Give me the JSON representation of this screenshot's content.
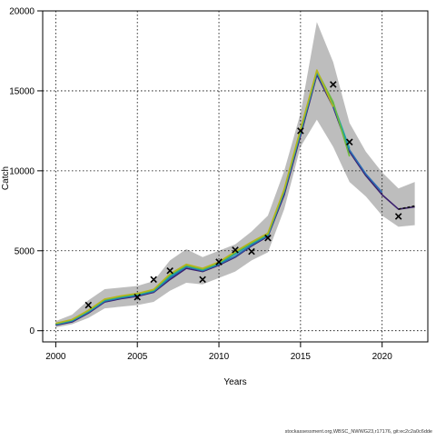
{
  "chart_data": {
    "type": "line",
    "xlabel": "Years",
    "ylabel": "Catch",
    "xlim": [
      1999.2,
      2022.8
    ],
    "ylim": [
      -700,
      20000
    ],
    "xticks": [
      2000,
      2005,
      2010,
      2015,
      2020
    ],
    "yticks": [
      0,
      5000,
      10000,
      15000,
      20000
    ],
    "grid": true,
    "band": {
      "x": [
        2000,
        2001,
        2002,
        2003,
        2004,
        2005,
        2006,
        2007,
        2008,
        2009,
        2010,
        2011,
        2012,
        2013,
        2014,
        2015,
        2016,
        2017,
        2018,
        2019,
        2020,
        2021,
        2022
      ],
      "upper": [
        600,
        1000,
        1900,
        2600,
        2700,
        2800,
        3100,
        4400,
        5100,
        4600,
        5000,
        5400,
        6200,
        7200,
        10000,
        13600,
        19300,
        16800,
        13000,
        11200,
        9900,
        8900,
        9300
      ],
      "lower": [
        200,
        400,
        800,
        1400,
        1500,
        1600,
        1800,
        2500,
        3000,
        2900,
        3300,
        3700,
        4400,
        4900,
        7600,
        11500,
        13200,
        11500,
        9300,
        8400,
        7200,
        6500,
        6600
      ],
      "color": "#bdbdbd"
    },
    "series": [
      {
        "color": "#3b1f6e",
        "x": [
          2000,
          2001,
          2002,
          2003,
          2004,
          2005,
          2006,
          2007,
          2008,
          2009,
          2010,
          2011,
          2012,
          2013,
          2014,
          2015,
          2016,
          2017,
          2018,
          2019,
          2020,
          2021,
          2022
        ],
        "y": [
          350,
          550,
          1100,
          1800,
          2000,
          2150,
          2400,
          3200,
          3900,
          3700,
          4100,
          4600,
          5300,
          5900,
          8500,
          12200,
          16000,
          14000,
          11200,
          9700,
          8500,
          7600,
          7750
        ]
      },
      {
        "color": "#2a6bb3",
        "x": [
          2000,
          2001,
          2002,
          2003,
          2004,
          2005,
          2006,
          2007,
          2008,
          2009,
          2010,
          2011,
          2012,
          2013,
          2014,
          2015,
          2016,
          2017,
          2018,
          2019,
          2020
        ],
        "y": [
          380,
          600,
          1150,
          1850,
          2050,
          2200,
          2450,
          3300,
          4000,
          3750,
          4150,
          4650,
          5350,
          5950,
          8650,
          12350,
          16100,
          14100,
          11300,
          9800,
          8650
        ]
      },
      {
        "color": "#1aa3a3",
        "x": [
          2000,
          2001,
          2002,
          2003,
          2004,
          2005,
          2006,
          2007,
          2008,
          2009,
          2010,
          2011,
          2012,
          2013,
          2014,
          2015,
          2016,
          2017,
          2018
        ],
        "y": [
          410,
          640,
          1200,
          1900,
          2100,
          2250,
          2500,
          3400,
          4050,
          3800,
          4200,
          4800,
          5450,
          6000,
          8750,
          12450,
          16200,
          14200,
          11400
        ]
      },
      {
        "color": "#6cba3a",
        "x": [
          2000,
          2001,
          2002,
          2003,
          2004,
          2005,
          2006,
          2007,
          2008,
          2009,
          2010,
          2011,
          2012,
          2013,
          2014,
          2015,
          2016,
          2017,
          2018
        ],
        "y": [
          440,
          680,
          1250,
          1950,
          2150,
          2300,
          2550,
          3500,
          4100,
          3850,
          4250,
          4900,
          5500,
          6050,
          8800,
          12550,
          16250,
          14300,
          10900
        ]
      },
      {
        "color": "#b5b51f",
        "x": [
          2000,
          2001,
          2002,
          2003,
          2004,
          2005,
          2006,
          2007,
          2008,
          2009,
          2010,
          2011,
          2012,
          2013,
          2014,
          2015,
          2016,
          2017
        ],
        "y": [
          460,
          700,
          1280,
          1980,
          2180,
          2330,
          2580,
          3550,
          4150,
          3900,
          4300,
          4950,
          5550,
          6100,
          8850,
          12600,
          16300,
          14000
        ]
      }
    ],
    "projection": {
      "color": "#111111",
      "x": [
        2021,
        2022
      ],
      "y": [
        7600,
        7800
      ]
    },
    "observed": {
      "x": [
        2002,
        2005,
        2006,
        2007,
        2009,
        2010,
        2011,
        2012,
        2013,
        2015,
        2017,
        2018,
        2021
      ],
      "y": [
        1600,
        2100,
        3200,
        3750,
        3200,
        4300,
        5050,
        4950,
        5800,
        12500,
        15400,
        11800,
        7150
      ]
    }
  },
  "footer": "stockassessment.org,WBSC_NWWG23,r17176, git:ec2c2a0c6dde"
}
